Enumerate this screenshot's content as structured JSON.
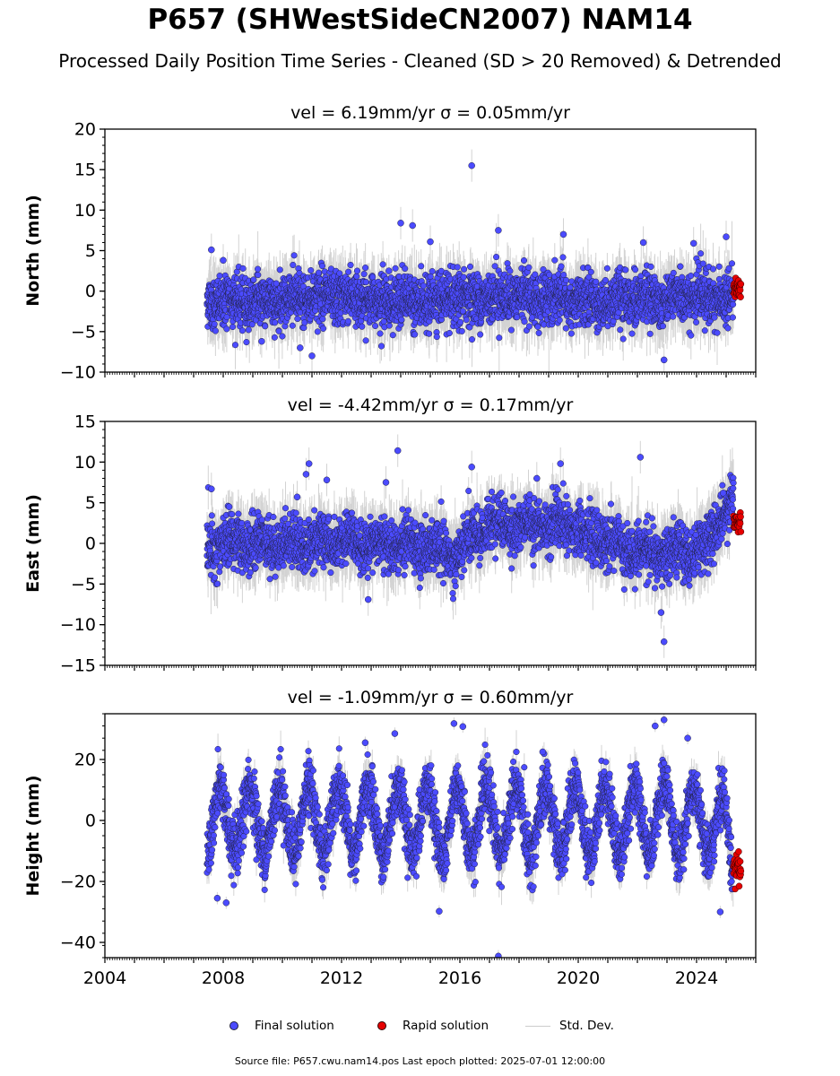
{
  "title": "P657 (SHWestSideCN2007) NAM14",
  "subtitle": "Processed Daily Position Time Series - Cleaned (SD > 20 Removed) & Detrended",
  "footer": "Source file: P657.cwu.nam14.pos  Last epoch plotted: 2025-07-01 12:00:00",
  "legend": {
    "final": "Final solution",
    "rapid": "Rapid solution",
    "stddev": "Std. Dev."
  },
  "colors": {
    "final": "#4b4bff",
    "rapid": "#e60000",
    "stddev": "#c8c8c8",
    "marker_edge": "#222244"
  },
  "chart_data": [
    {
      "type": "scatter",
      "panel": "north",
      "title": "vel = 6.19mm/yr   σ = 0.05mm/yr",
      "ylabel": "North (mm)",
      "xlim": [
        2004.0,
        2026.0
      ],
      "ylim": [
        -10,
        20
      ],
      "yticks": [
        -10,
        -5,
        0,
        5,
        10,
        15,
        20
      ],
      "xticks": [
        2004,
        2008,
        2012,
        2016,
        2020,
        2024
      ],
      "show_xticklabels": false,
      "data_start": 2007.45,
      "rapid_start": 2025.25,
      "data_end": 2025.5,
      "noise_sd": 1.6,
      "seasonal_amp": 0.4,
      "outliers": [
        [
          2007.6,
          5.1
        ],
        [
          2008.0,
          3.8
        ],
        [
          2009.3,
          -6.2
        ],
        [
          2010.6,
          -7.0
        ],
        [
          2011.0,
          -8.0
        ],
        [
          2013.6,
          2.5
        ],
        [
          2014.0,
          8.4
        ],
        [
          2014.4,
          8.1
        ],
        [
          2015.0,
          6.1
        ],
        [
          2016.4,
          15.5
        ],
        [
          2017.3,
          7.5
        ],
        [
          2019.5,
          7.0
        ],
        [
          2022.2,
          6.0
        ],
        [
          2022.9,
          -8.5
        ],
        [
          2023.9,
          5.9
        ],
        [
          2025.0,
          6.7
        ]
      ]
    },
    {
      "type": "scatter",
      "panel": "east",
      "title": "vel = -4.42mm/yr   σ = 0.17mm/yr",
      "ylabel": "East (mm)",
      "xlim": [
        2004.0,
        2026.0
      ],
      "ylim": [
        -15,
        15
      ],
      "yticks": [
        -15,
        -10,
        -5,
        0,
        5,
        10,
        15
      ],
      "xticks": [
        2004,
        2008,
        2012,
        2016,
        2020,
        2024
      ],
      "show_xticklabels": false,
      "data_start": 2007.45,
      "rapid_start": 2025.25,
      "data_end": 2025.5,
      "noise_sd": 1.6,
      "seasonal_amp": 0.6,
      "trend_knots": [
        [
          2007.4,
          0
        ],
        [
          2014.5,
          0
        ],
        [
          2015.8,
          -1.5
        ],
        [
          2017.0,
          2.5
        ],
        [
          2019.8,
          2.0
        ],
        [
          2020.8,
          0.5
        ],
        [
          2021.8,
          -1.0
        ],
        [
          2023.0,
          -1.5
        ],
        [
          2024.3,
          -0.5
        ],
        [
          2024.8,
          3.5
        ],
        [
          2025.3,
          5.5
        ],
        [
          2025.5,
          3.0
        ]
      ],
      "outliers": [
        [
          2007.6,
          6.7
        ],
        [
          2008.2,
          4.5
        ],
        [
          2010.5,
          5.7
        ],
        [
          2010.8,
          8.5
        ],
        [
          2010.9,
          9.8
        ],
        [
          2011.5,
          7.8
        ],
        [
          2012.9,
          -6.9
        ],
        [
          2013.5,
          7.5
        ],
        [
          2013.9,
          11.4
        ],
        [
          2016.4,
          9.4
        ],
        [
          2018.6,
          8.0
        ],
        [
          2019.4,
          9.8
        ],
        [
          2022.1,
          10.6
        ],
        [
          2022.8,
          -8.5
        ],
        [
          2022.9,
          -12.1
        ],
        [
          2024.9,
          6.2
        ]
      ]
    },
    {
      "type": "scatter",
      "panel": "height",
      "title": "vel = -1.09mm/yr   σ = 0.60mm/yr",
      "ylabel": "Height (mm)",
      "xlim": [
        2004.0,
        2026.0
      ],
      "ylim": [
        -45,
        35
      ],
      "yticks": [
        -40,
        -20,
        0,
        20
      ],
      "xticks": [
        2004,
        2008,
        2012,
        2016,
        2020,
        2024
      ],
      "show_xticklabels": true,
      "data_start": 2007.45,
      "rapid_start": 2025.25,
      "data_end": 2025.5,
      "noise_sd": 4.5,
      "seasonal_amp": 11,
      "seasonal_phase": 0.35,
      "trend_knots": [
        [
          2007.4,
          0
        ],
        [
          2024.8,
          0
        ],
        [
          2025.2,
          -12
        ],
        [
          2025.5,
          -15
        ]
      ],
      "outliers": [
        [
          2007.8,
          -25.5
        ],
        [
          2008.1,
          -27.0
        ],
        [
          2012.8,
          25.5
        ],
        [
          2013.8,
          28.5
        ],
        [
          2015.3,
          -29.8
        ],
        [
          2015.8,
          31.8
        ],
        [
          2016.1,
          30.8
        ],
        [
          2017.3,
          -44.5
        ],
        [
          2018.8,
          22.5
        ],
        [
          2022.6,
          31.0
        ],
        [
          2022.9,
          33.0
        ],
        [
          2023.7,
          27.0
        ],
        [
          2024.8,
          -30.0
        ]
      ]
    }
  ]
}
